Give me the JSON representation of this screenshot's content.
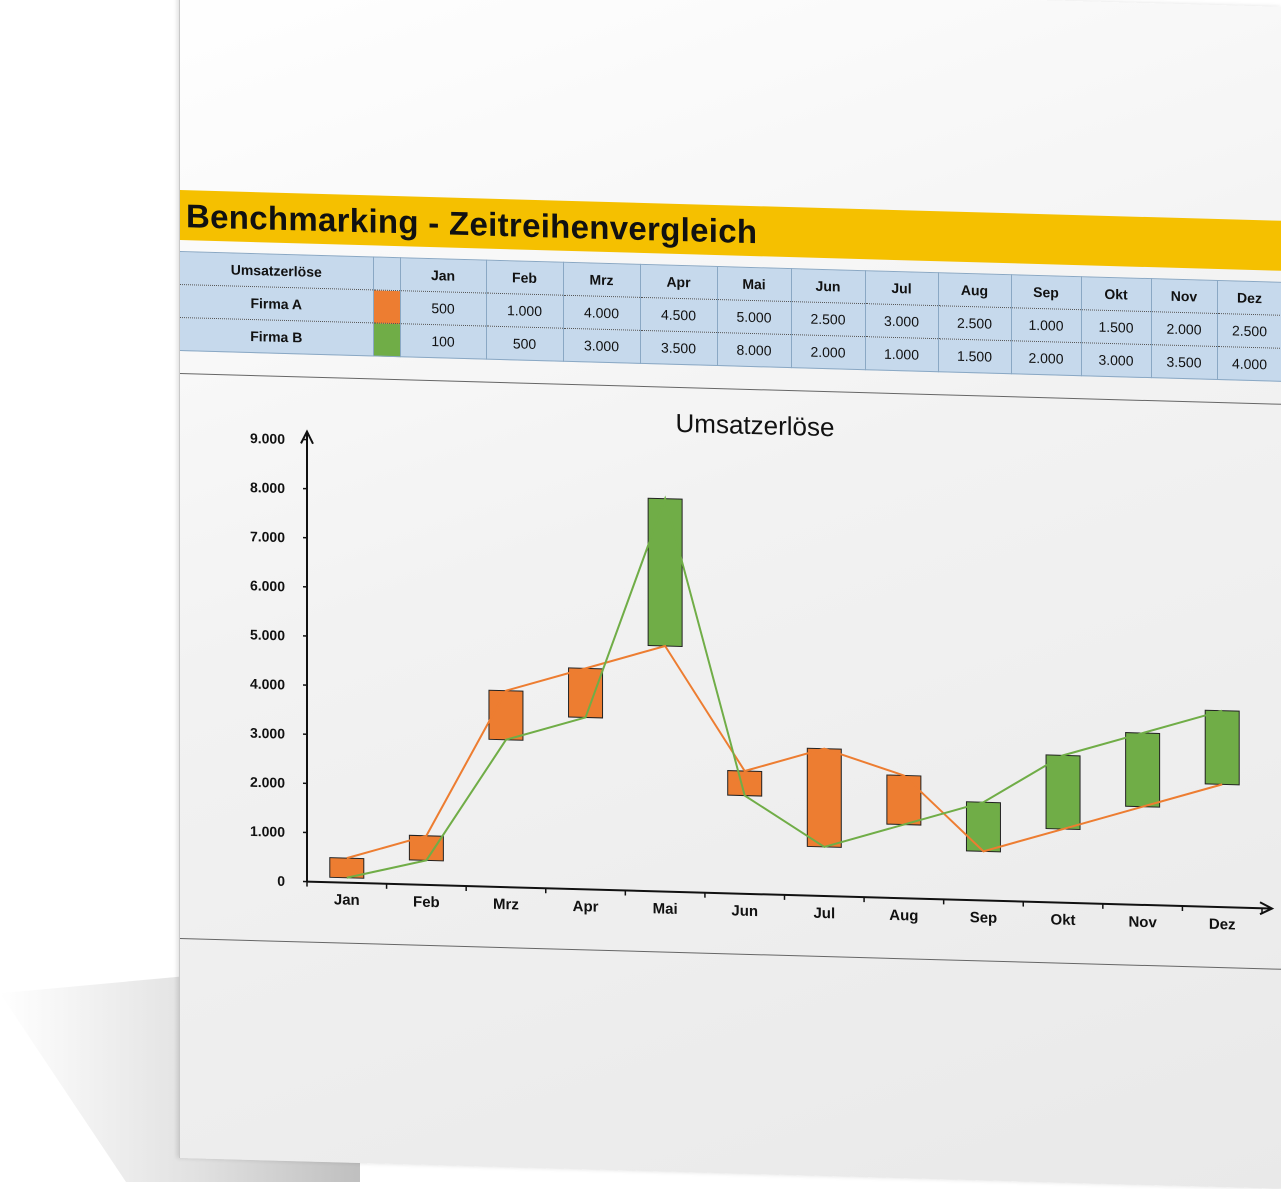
{
  "page_title": "Benchmarking - Zeitreihenvergleich",
  "table": {
    "header_label": "Umsatzerlöse",
    "months": [
      "Jan",
      "Feb",
      "Mrz",
      "Apr",
      "Mai",
      "Jun",
      "Jul",
      "Aug",
      "Sep",
      "Okt",
      "Nov",
      "Dez"
    ],
    "rows": [
      {
        "name": "Firma A",
        "color": "#ed7d31",
        "values": [
          "500",
          "1.000",
          "4.000",
          "4.500",
          "5.000",
          "2.500",
          "3.000",
          "2.500",
          "1.000",
          "1.500",
          "2.000",
          "2.500"
        ]
      },
      {
        "name": "Firma B",
        "color": "#70ad47",
        "values": [
          "100",
          "500",
          "3.000",
          "3.500",
          "8.000",
          "2.000",
          "1.000",
          "1.500",
          "2.000",
          "3.000",
          "3.500",
          "4.000"
        ]
      }
    ]
  },
  "chart_data": {
    "type": "line",
    "title": "Umsatzerlöse",
    "categories": [
      "Jan",
      "Feb",
      "Mrz",
      "Apr",
      "Mai",
      "Jun",
      "Jul",
      "Aug",
      "Sep",
      "Okt",
      "Nov",
      "Dez"
    ],
    "series": [
      {
        "name": "Firma A",
        "color": "#ed7d31",
        "values": [
          500,
          1000,
          4000,
          4500,
          5000,
          2500,
          3000,
          2500,
          1000,
          1500,
          2000,
          2500
        ]
      },
      {
        "name": "Firma B",
        "color": "#70ad47",
        "values": [
          100,
          500,
          3000,
          3500,
          8000,
          2000,
          1000,
          1500,
          2000,
          3000,
          3500,
          4000
        ]
      }
    ],
    "up_down_bars": {
      "up_color": "#70ad47",
      "down_color": "#ed7d31"
    },
    "ylim": [
      0,
      9000
    ],
    "yticks": [
      0,
      1000,
      2000,
      3000,
      4000,
      5000,
      6000,
      7000,
      8000,
      9000
    ],
    "ytick_labels": [
      "0",
      "1.000",
      "2.000",
      "3.000",
      "4.000",
      "5.000",
      "6.000",
      "7.000",
      "8.000",
      "9.000"
    ],
    "grid": false,
    "legend": "none"
  }
}
